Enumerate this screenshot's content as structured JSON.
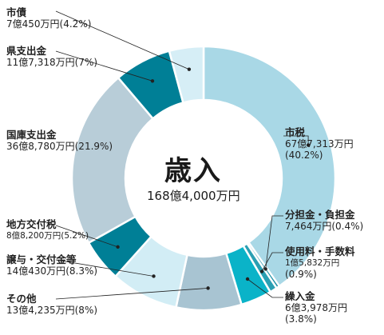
{
  "chart_data": {
    "type": "pie",
    "title": "歳入",
    "total": "168億4,000万円",
    "series": [
      {
        "name": "市税",
        "amount": "67億7,313万円",
        "percent_text": "(40.2%)",
        "value": 40.2,
        "color": "#a9d8e6"
      },
      {
        "name": "分担金・負担金",
        "amount": "7,464万円",
        "percent_text": "(0.4%)",
        "value": 0.4,
        "color": "#1a8fa6"
      },
      {
        "name": "使用料・手数料",
        "amount": "1億5,832万円",
        "percent_text": "(0.9%)",
        "value": 0.9,
        "color": "#2a9fb3"
      },
      {
        "name": "繰入金",
        "amount": "6億3,978万円",
        "percent_text": "(3.8%)",
        "value": 3.8,
        "color": "#0ab3c8"
      },
      {
        "name": "その他",
        "amount": "13億4,235万円",
        "percent_text": "(8%)",
        "value": 8.0,
        "color": "#a8c4d2"
      },
      {
        "name": "譲与・交付金等",
        "amount": "14億430万円",
        "percent_text": "(8.3%)",
        "value": 8.3,
        "color": "#d2edf5"
      },
      {
        "name": "地方交付税",
        "amount": "8億8,200万円",
        "percent_text": "(5.2%)",
        "value": 5.2,
        "color": "#007f96"
      },
      {
        "name": "国庫支出金",
        "amount": "36億8,780万円",
        "percent_text": "(21.9%)",
        "value": 21.9,
        "color": "#b8cdd8"
      },
      {
        "name": "県支出金",
        "amount": "11億7,318万円",
        "percent_text": "(7%)",
        "value": 7.0,
        "color": "#007f96"
      },
      {
        "name": "市債",
        "amount": "7億450万円",
        "percent_text": "(4.2%)",
        "value": 4.2,
        "color": "#d6eef6"
      }
    ]
  }
}
